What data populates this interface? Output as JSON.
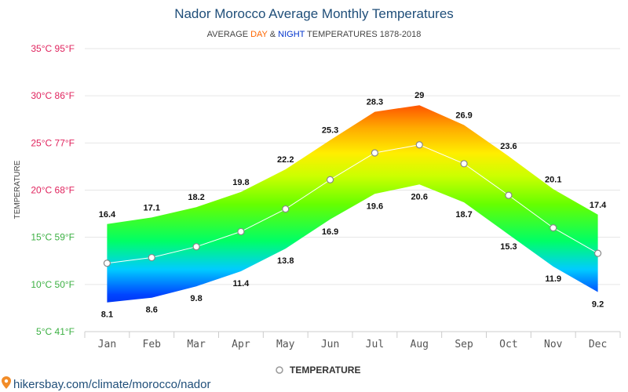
{
  "chart_data": {
    "type": "area",
    "title": "Nador Morocco Average Monthly Temperatures",
    "subtitle": {
      "prefix": "AVERAGE ",
      "day": "DAY",
      "amp": " & ",
      "night": "NIGHT",
      "suffix": " TEMPERATURES 1878-2018"
    },
    "ylabel": "TEMPERATURE",
    "categories": [
      "Jan",
      "Feb",
      "Mar",
      "Apr",
      "May",
      "Jun",
      "Jul",
      "Aug",
      "Sep",
      "Oct",
      "Nov",
      "Dec"
    ],
    "day": [
      16.4,
      17.1,
      18.2,
      19.8,
      22.2,
      25.3,
      28.3,
      29,
      26.9,
      23.6,
      20.1,
      17.4
    ],
    "night": [
      8.1,
      8.6,
      9.8,
      11.4,
      13.8,
      16.9,
      19.6,
      20.6,
      18.7,
      15.3,
      11.9,
      9.2
    ],
    "day_labels": [
      "16.4",
      "17.1",
      "18.2",
      "19.8",
      "22.2",
      "25.3",
      "28.3",
      "29",
      "26.9",
      "23.6",
      "20.1",
      "17.4"
    ],
    "night_labels": [
      "8.1",
      "8.6",
      "9.8",
      "11.4",
      "13.8",
      "16.9",
      "19.6",
      "20.6",
      "18.7",
      "15.3",
      "11.9",
      "9.2"
    ],
    "ylim": [
      5,
      35
    ],
    "yticks": [
      {
        "value": 35,
        "label": "35°C 95°F",
        "color": "#e0245e"
      },
      {
        "value": 30,
        "label": "30°C 86°F",
        "color": "#e0245e"
      },
      {
        "value": 25,
        "label": "25°C 77°F",
        "color": "#e0245e"
      },
      {
        "value": 20,
        "label": "20°C 68°F",
        "color": "#e0245e"
      },
      {
        "value": 15,
        "label": "15°C 59°F",
        "color": "#3cb043"
      },
      {
        "value": 10,
        "label": "10°C 50°F",
        "color": "#3cb043"
      },
      {
        "value": 5,
        "label": "5°C 41°F",
        "color": "#3cb043"
      }
    ],
    "legend": {
      "label": "TEMPERATURE",
      "position": "bottom-center"
    },
    "grid": true
  },
  "colors": {
    "title": "#1f4e79",
    "day": "#ff6600",
    "night": "#0033cc",
    "source": "#1f4e79",
    "pin": "#f28c28"
  },
  "source": {
    "text": "hikersbay.com/climate/morocco/nador",
    "icon": "location-pin-icon"
  }
}
